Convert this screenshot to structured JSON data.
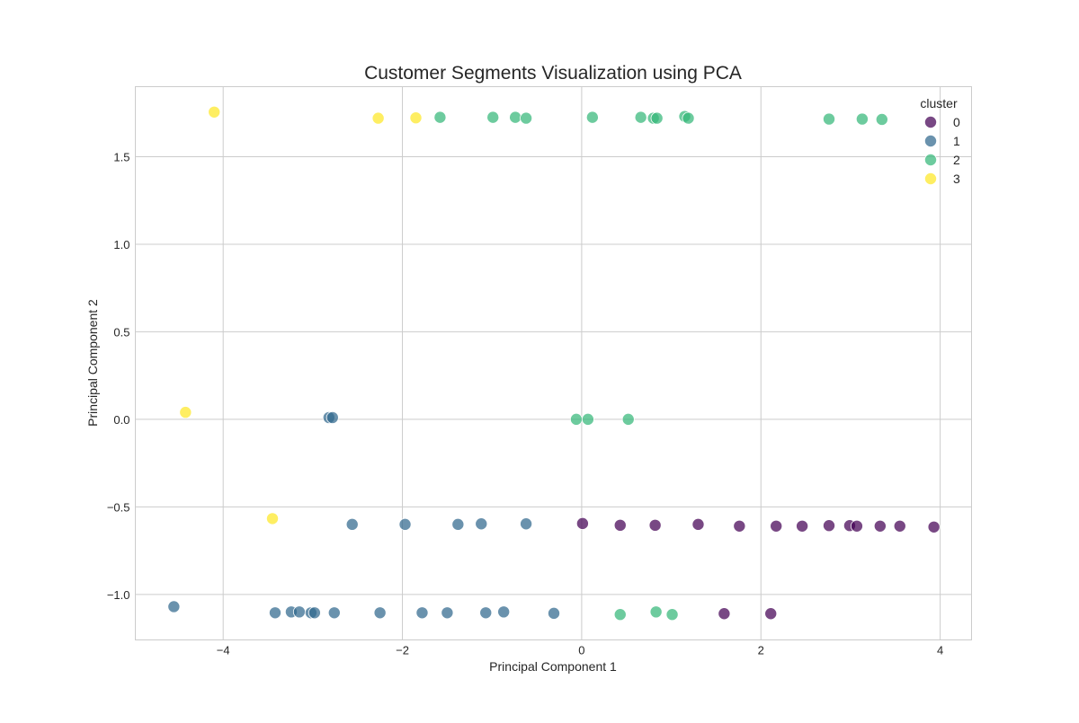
{
  "chart_data": {
    "type": "scatter",
    "title": "Customer Segments Visualization using PCA",
    "xlabel": "Principal Component 1",
    "ylabel": "Principal Component 2",
    "xlim": [
      -4.98,
      4.35
    ],
    "ylim": [
      -1.26,
      1.9
    ],
    "xticks": [
      -4,
      -2,
      0,
      2,
      4
    ],
    "yticks": [
      -1.0,
      -0.5,
      0.0,
      0.5,
      1.0,
      1.5
    ],
    "xtick_labels": [
      "−4",
      "−2",
      "0",
      "2",
      "4"
    ],
    "ytick_labels": [
      "−1.0",
      "−0.5",
      "0.0",
      "0.5",
      "1.0",
      "1.5"
    ],
    "grid": true,
    "legend": {
      "title": "cluster",
      "placement": "top-right"
    },
    "series": [
      {
        "name": "0",
        "color": "#440154",
        "points": [
          [
            0.01,
            -0.595
          ],
          [
            0.43,
            -0.605
          ],
          [
            0.82,
            -0.605
          ],
          [
            1.3,
            -0.6
          ],
          [
            1.76,
            -0.61
          ],
          [
            2.17,
            -0.61
          ],
          [
            2.46,
            -0.61
          ],
          [
            2.76,
            -0.607
          ],
          [
            2.99,
            -0.607
          ],
          [
            3.07,
            -0.61
          ],
          [
            3.33,
            -0.61
          ],
          [
            3.55,
            -0.61
          ],
          [
            3.93,
            -0.615
          ],
          [
            1.59,
            -1.11
          ],
          [
            2.11,
            -1.11
          ]
        ]
      },
      {
        "name": "1",
        "color": "#31688e",
        "points": [
          [
            -2.82,
            0.01
          ],
          [
            -2.78,
            0.01
          ],
          [
            -2.56,
            -0.6
          ],
          [
            -1.97,
            -0.6
          ],
          [
            -1.38,
            -0.6
          ],
          [
            -1.12,
            -0.597
          ],
          [
            -0.62,
            -0.597
          ],
          [
            -4.55,
            -1.07
          ],
          [
            -3.42,
            -1.105
          ],
          [
            -3.24,
            -1.1
          ],
          [
            -3.15,
            -1.1
          ],
          [
            -3.02,
            -1.105
          ],
          [
            -2.98,
            -1.105
          ],
          [
            -2.76,
            -1.105
          ],
          [
            -2.25,
            -1.105
          ],
          [
            -1.78,
            -1.105
          ],
          [
            -1.5,
            -1.105
          ],
          [
            -1.07,
            -1.105
          ],
          [
            -0.87,
            -1.1
          ],
          [
            -0.31,
            -1.108
          ]
        ]
      },
      {
        "name": "2",
        "color": "#35b779",
        "points": [
          [
            -1.58,
            1.725
          ],
          [
            -0.99,
            1.725
          ],
          [
            -0.74,
            1.725
          ],
          [
            -0.62,
            1.72
          ],
          [
            0.12,
            1.725
          ],
          [
            0.66,
            1.725
          ],
          [
            0.8,
            1.72
          ],
          [
            0.84,
            1.72
          ],
          [
            1.15,
            1.73
          ],
          [
            1.19,
            1.72
          ],
          [
            2.76,
            1.715
          ],
          [
            3.13,
            1.715
          ],
          [
            3.35,
            1.713
          ],
          [
            -0.06,
            0.0
          ],
          [
            0.07,
            0.0
          ],
          [
            0.52,
            0.0
          ],
          [
            0.43,
            -1.115
          ],
          [
            0.83,
            -1.1
          ],
          [
            1.01,
            -1.115
          ]
        ]
      },
      {
        "name": "3",
        "color": "#fde725",
        "points": [
          [
            -4.1,
            1.755
          ],
          [
            -2.27,
            1.72
          ],
          [
            -1.85,
            1.722
          ],
          [
            -4.42,
            0.04
          ],
          [
            -3.45,
            -0.567
          ]
        ]
      }
    ]
  }
}
